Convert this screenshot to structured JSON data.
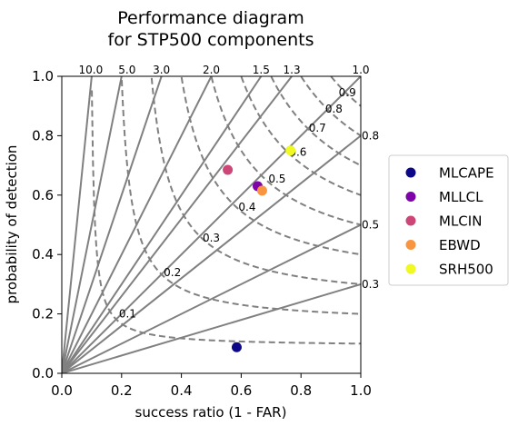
{
  "chart_data": {
    "type": "scatter",
    "title": [
      "Performance diagram",
      "for STP500 components"
    ],
    "xlabel": "success ratio (1 - FAR)",
    "ylabel": "probability of detection",
    "xlim": [
      0.0,
      1.0
    ],
    "ylim": [
      0.0,
      1.0
    ],
    "xticks": [
      "0.0",
      "0.2",
      "0.4",
      "0.6",
      "0.8",
      "1.0"
    ],
    "yticks": [
      "0.0",
      "0.2",
      "0.4",
      "0.6",
      "0.8",
      "1.0"
    ],
    "bias_lines": [
      {
        "value": 10.0,
        "label": "10.0"
      },
      {
        "value": 5.0,
        "label": "5.0"
      },
      {
        "value": 3.0,
        "label": "3.0"
      },
      {
        "value": 2.0,
        "label": "2.0"
      },
      {
        "value": 1.5,
        "label": "1.5"
      },
      {
        "value": 1.3,
        "label": "1.3"
      },
      {
        "value": 1.0,
        "label": "1.0"
      },
      {
        "value": 0.8,
        "label": "0.8"
      },
      {
        "value": 0.5,
        "label": "0.5"
      },
      {
        "value": 0.3,
        "label": "0.3"
      }
    ],
    "csi_contours": [
      {
        "value": 0.1,
        "label": "0.1",
        "label_at": [
          0.22,
          0.2
        ]
      },
      {
        "value": 0.2,
        "label": "0.2",
        "label_at": [
          0.37,
          0.34
        ]
      },
      {
        "value": 0.3,
        "label": "0.3",
        "label_at": [
          0.5,
          0.455
        ]
      },
      {
        "value": 0.4,
        "label": "0.4",
        "label_at": [
          0.62,
          0.56
        ]
      },
      {
        "value": 0.5,
        "label": "0.5",
        "label_at": [
          0.72,
          0.655
        ]
      },
      {
        "value": 0.6,
        "label": "0.6",
        "label_at": [
          0.79,
          0.745
        ]
      },
      {
        "value": 0.7,
        "label": "0.7",
        "label_at": [
          0.855,
          0.825
        ]
      },
      {
        "value": 0.8,
        "label": "0.8",
        "label_at": [
          0.91,
          0.89
        ]
      },
      {
        "value": 0.9,
        "label": "0.9",
        "label_at": [
          0.955,
          0.945
        ]
      }
    ],
    "series": [
      {
        "name": "MLCAPE",
        "color": "#0d0887",
        "x": 0.585,
        "y": 0.088
      },
      {
        "name": "MLLCL",
        "color": "#7e03a8",
        "x": 0.655,
        "y": 0.63
      },
      {
        "name": "MLCIN",
        "color": "#cc4778",
        "x": 0.555,
        "y": 0.685
      },
      {
        "name": "EBWD",
        "color": "#f89540",
        "x": 0.67,
        "y": 0.615
      },
      {
        "name": "SRH500",
        "color": "#f0f921",
        "x": 0.765,
        "y": 0.75
      }
    ],
    "legend_position": "right"
  }
}
